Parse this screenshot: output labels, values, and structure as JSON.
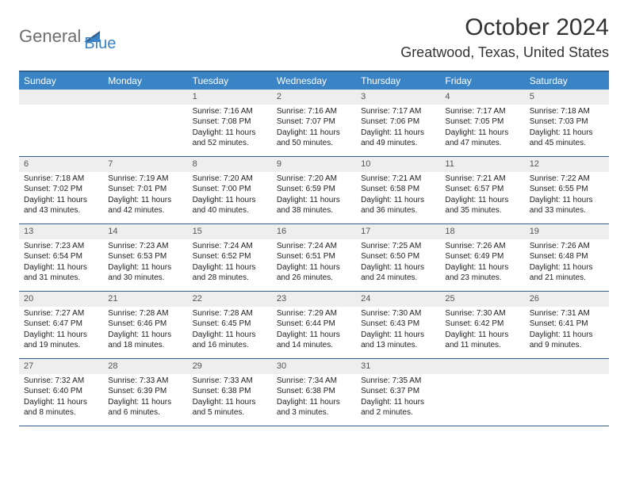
{
  "logo": {
    "text1": "General",
    "text2": "Blue",
    "accent_color": "#3a83c5",
    "gray_color": "#6e6e6e"
  },
  "title": "October 2024",
  "location": "Greatwood, Texas, United States",
  "colors": {
    "header_bg": "#3a83c5",
    "header_text": "#ffffff",
    "border": "#2f5f8a",
    "daynum_bg": "#eeeeee",
    "text": "#333333"
  },
  "weekdays": [
    "Sunday",
    "Monday",
    "Tuesday",
    "Wednesday",
    "Thursday",
    "Friday",
    "Saturday"
  ],
  "weeks": [
    [
      {
        "num": "",
        "lines": []
      },
      {
        "num": "",
        "lines": []
      },
      {
        "num": "1",
        "lines": [
          "Sunrise: 7:16 AM",
          "Sunset: 7:08 PM",
          "Daylight: 11 hours",
          "and 52 minutes."
        ]
      },
      {
        "num": "2",
        "lines": [
          "Sunrise: 7:16 AM",
          "Sunset: 7:07 PM",
          "Daylight: 11 hours",
          "and 50 minutes."
        ]
      },
      {
        "num": "3",
        "lines": [
          "Sunrise: 7:17 AM",
          "Sunset: 7:06 PM",
          "Daylight: 11 hours",
          "and 49 minutes."
        ]
      },
      {
        "num": "4",
        "lines": [
          "Sunrise: 7:17 AM",
          "Sunset: 7:05 PM",
          "Daylight: 11 hours",
          "and 47 minutes."
        ]
      },
      {
        "num": "5",
        "lines": [
          "Sunrise: 7:18 AM",
          "Sunset: 7:03 PM",
          "Daylight: 11 hours",
          "and 45 minutes."
        ]
      }
    ],
    [
      {
        "num": "6",
        "lines": [
          "Sunrise: 7:18 AM",
          "Sunset: 7:02 PM",
          "Daylight: 11 hours",
          "and 43 minutes."
        ]
      },
      {
        "num": "7",
        "lines": [
          "Sunrise: 7:19 AM",
          "Sunset: 7:01 PM",
          "Daylight: 11 hours",
          "and 42 minutes."
        ]
      },
      {
        "num": "8",
        "lines": [
          "Sunrise: 7:20 AM",
          "Sunset: 7:00 PM",
          "Daylight: 11 hours",
          "and 40 minutes."
        ]
      },
      {
        "num": "9",
        "lines": [
          "Sunrise: 7:20 AM",
          "Sunset: 6:59 PM",
          "Daylight: 11 hours",
          "and 38 minutes."
        ]
      },
      {
        "num": "10",
        "lines": [
          "Sunrise: 7:21 AM",
          "Sunset: 6:58 PM",
          "Daylight: 11 hours",
          "and 36 minutes."
        ]
      },
      {
        "num": "11",
        "lines": [
          "Sunrise: 7:21 AM",
          "Sunset: 6:57 PM",
          "Daylight: 11 hours",
          "and 35 minutes."
        ]
      },
      {
        "num": "12",
        "lines": [
          "Sunrise: 7:22 AM",
          "Sunset: 6:55 PM",
          "Daylight: 11 hours",
          "and 33 minutes."
        ]
      }
    ],
    [
      {
        "num": "13",
        "lines": [
          "Sunrise: 7:23 AM",
          "Sunset: 6:54 PM",
          "Daylight: 11 hours",
          "and 31 minutes."
        ]
      },
      {
        "num": "14",
        "lines": [
          "Sunrise: 7:23 AM",
          "Sunset: 6:53 PM",
          "Daylight: 11 hours",
          "and 30 minutes."
        ]
      },
      {
        "num": "15",
        "lines": [
          "Sunrise: 7:24 AM",
          "Sunset: 6:52 PM",
          "Daylight: 11 hours",
          "and 28 minutes."
        ]
      },
      {
        "num": "16",
        "lines": [
          "Sunrise: 7:24 AM",
          "Sunset: 6:51 PM",
          "Daylight: 11 hours",
          "and 26 minutes."
        ]
      },
      {
        "num": "17",
        "lines": [
          "Sunrise: 7:25 AM",
          "Sunset: 6:50 PM",
          "Daylight: 11 hours",
          "and 24 minutes."
        ]
      },
      {
        "num": "18",
        "lines": [
          "Sunrise: 7:26 AM",
          "Sunset: 6:49 PM",
          "Daylight: 11 hours",
          "and 23 minutes."
        ]
      },
      {
        "num": "19",
        "lines": [
          "Sunrise: 7:26 AM",
          "Sunset: 6:48 PM",
          "Daylight: 11 hours",
          "and 21 minutes."
        ]
      }
    ],
    [
      {
        "num": "20",
        "lines": [
          "Sunrise: 7:27 AM",
          "Sunset: 6:47 PM",
          "Daylight: 11 hours",
          "and 19 minutes."
        ]
      },
      {
        "num": "21",
        "lines": [
          "Sunrise: 7:28 AM",
          "Sunset: 6:46 PM",
          "Daylight: 11 hours",
          "and 18 minutes."
        ]
      },
      {
        "num": "22",
        "lines": [
          "Sunrise: 7:28 AM",
          "Sunset: 6:45 PM",
          "Daylight: 11 hours",
          "and 16 minutes."
        ]
      },
      {
        "num": "23",
        "lines": [
          "Sunrise: 7:29 AM",
          "Sunset: 6:44 PM",
          "Daylight: 11 hours",
          "and 14 minutes."
        ]
      },
      {
        "num": "24",
        "lines": [
          "Sunrise: 7:30 AM",
          "Sunset: 6:43 PM",
          "Daylight: 11 hours",
          "and 13 minutes."
        ]
      },
      {
        "num": "25",
        "lines": [
          "Sunrise: 7:30 AM",
          "Sunset: 6:42 PM",
          "Daylight: 11 hours",
          "and 11 minutes."
        ]
      },
      {
        "num": "26",
        "lines": [
          "Sunrise: 7:31 AM",
          "Sunset: 6:41 PM",
          "Daylight: 11 hours",
          "and 9 minutes."
        ]
      }
    ],
    [
      {
        "num": "27",
        "lines": [
          "Sunrise: 7:32 AM",
          "Sunset: 6:40 PM",
          "Daylight: 11 hours",
          "and 8 minutes."
        ]
      },
      {
        "num": "28",
        "lines": [
          "Sunrise: 7:33 AM",
          "Sunset: 6:39 PM",
          "Daylight: 11 hours",
          "and 6 minutes."
        ]
      },
      {
        "num": "29",
        "lines": [
          "Sunrise: 7:33 AM",
          "Sunset: 6:38 PM",
          "Daylight: 11 hours",
          "and 5 minutes."
        ]
      },
      {
        "num": "30",
        "lines": [
          "Sunrise: 7:34 AM",
          "Sunset: 6:38 PM",
          "Daylight: 11 hours",
          "and 3 minutes."
        ]
      },
      {
        "num": "31",
        "lines": [
          "Sunrise: 7:35 AM",
          "Sunset: 6:37 PM",
          "Daylight: 11 hours",
          "and 2 minutes."
        ]
      },
      {
        "num": "",
        "lines": []
      },
      {
        "num": "",
        "lines": []
      }
    ]
  ]
}
